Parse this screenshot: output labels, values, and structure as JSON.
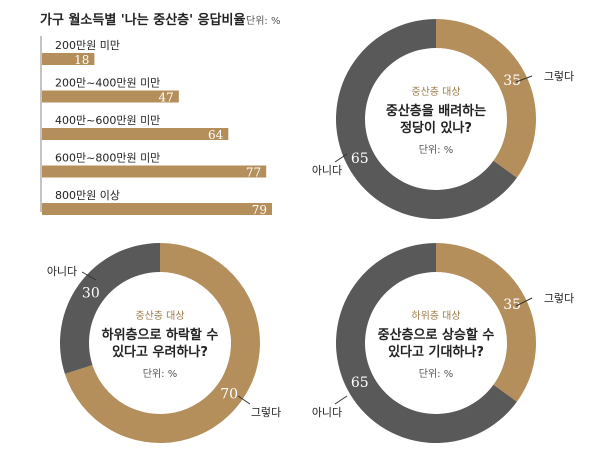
{
  "colors": {
    "tan": "#b48f5c",
    "dark": "#595959",
    "label": "#9a7a4a",
    "text": "#222222",
    "axis": "#8a8a8a"
  },
  "chart_data": [
    {
      "type": "bar",
      "title": "가구 월소득별 '나는 중산층' 응답비율",
      "unit_note": "단위: %",
      "categories": [
        "200만원 미만",
        "200만~400만원 미만",
        "400만~600만원 미만",
        "600만~800만원 미만",
        "800만원 이상"
      ],
      "values": [
        18,
        47,
        64,
        77,
        79
      ],
      "orientation": "horizontal",
      "xlim": [
        0,
        79
      ]
    },
    {
      "type": "pie",
      "style": "donut",
      "kicker": "중산층 대상",
      "question": [
        "중산층을 배려하는",
        "정당이 있나?"
      ],
      "unit_note": "단위: %",
      "slices": [
        {
          "label": "그렇다",
          "value": 35,
          "color": "#b48f5c"
        },
        {
          "label": "아니다",
          "value": 65,
          "color": "#595959"
        }
      ]
    },
    {
      "type": "pie",
      "style": "donut",
      "kicker": "중산층 대상",
      "question": [
        "하위층으로 하락할 수",
        "있다고 우려하나?"
      ],
      "unit_note": "단위: %",
      "slices": [
        {
          "label": "그렇다",
          "value": 70,
          "color": "#b48f5c"
        },
        {
          "label": "아니다",
          "value": 30,
          "color": "#595959"
        }
      ]
    },
    {
      "type": "pie",
      "style": "donut",
      "kicker": "하위층 대상",
      "question": [
        "중산층으로 상승할 수",
        "있다고 기대하나?"
      ],
      "unit_note": "단위: %",
      "slices": [
        {
          "label": "그렇다",
          "value": 35,
          "color": "#b48f5c"
        },
        {
          "label": "아니다",
          "value": 65,
          "color": "#595959"
        }
      ]
    }
  ]
}
